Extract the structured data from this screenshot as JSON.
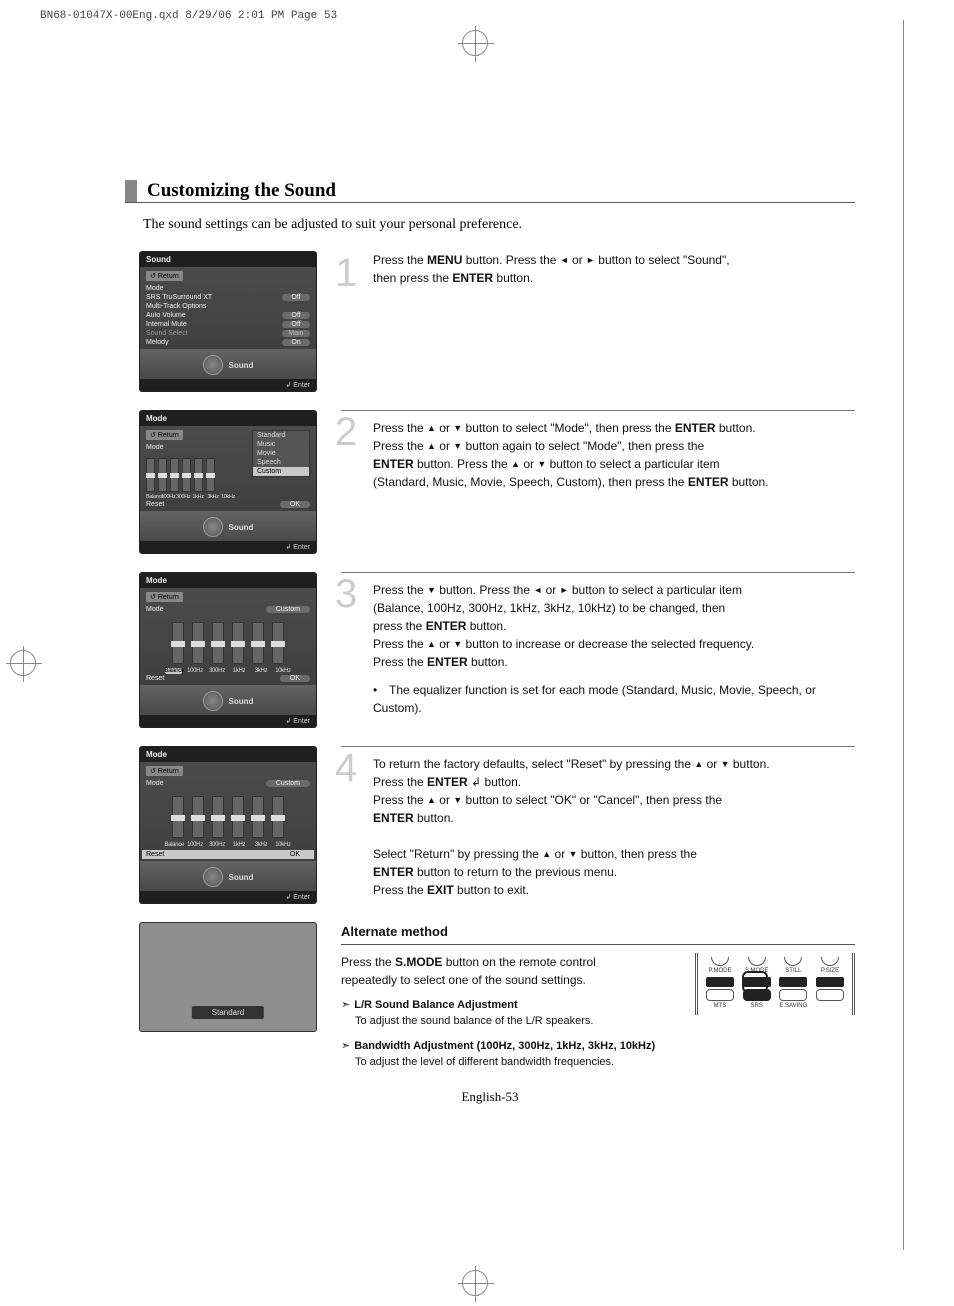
{
  "print_header": "BN68-01047X-00Eng.qxd  8/29/06  2:01 PM  Page 53",
  "title": "Customizing the Sound",
  "intro": "The sound settings can be adjusted to suit your personal preference.",
  "page_number": "English-53",
  "osd1": {
    "title": "Sound",
    "return": "Return",
    "items": [
      {
        "label": "Mode",
        "val": ""
      },
      {
        "label": "SRS TruSurround XT",
        "val": "Off"
      },
      {
        "label": "Multi-Track Options",
        "val": ""
      },
      {
        "label": "Auto Volume",
        "val": "Off"
      },
      {
        "label": "Internal Mute",
        "val": "Off"
      },
      {
        "label": "Sound Select",
        "val": "Main",
        "dim": true
      },
      {
        "label": "Melody",
        "val": "On"
      }
    ],
    "footer": "Sound",
    "enter": "Enter"
  },
  "osd2": {
    "title": "Mode",
    "return": "Return",
    "mode_label": "Mode",
    "options": [
      "Standard",
      "Music",
      "Movie",
      "Speech",
      "Custom"
    ],
    "selected": "Custom",
    "eq_labels": [
      "Balance",
      "100Hz",
      "300Hz",
      "1kHz",
      "3kHz",
      "10kHz"
    ],
    "reset": "Reset",
    "ok": "OK",
    "footer": "Sound",
    "enter": "Enter"
  },
  "osd3": {
    "title": "Mode",
    "return": "Return",
    "mode_label": "Mode",
    "mode_val": "Custom",
    "eq_labels": [
      "Balance",
      "100Hz",
      "300Hz",
      "1kHz",
      "3kHz",
      "10kHz"
    ],
    "selected_band": "Balance",
    "reset": "Reset",
    "ok": "OK",
    "footer": "Sound",
    "enter": "Enter"
  },
  "osd4": {
    "title": "Mode",
    "return": "Return",
    "mode_label": "Mode",
    "mode_val": "Custom",
    "eq_labels": [
      "Balance",
      "100Hz",
      "300Hz",
      "1kHz",
      "3kHz",
      "10kHz"
    ],
    "reset": "Reset",
    "ok": "OK",
    "footer": "Sound",
    "enter": "Enter"
  },
  "standard_popup": "Standard",
  "steps": {
    "s1": {
      "num": "1",
      "l1a": "Press the ",
      "l1b": "MENU",
      "l1c": " button. Press the ",
      "l1d": " or ",
      "l1e": " button to select \"Sound\",",
      "l2a": "then press the ",
      "l2b": "ENTER",
      "l2c": " button."
    },
    "s2": {
      "num": "2",
      "l1a": "Press the ",
      "l1b": " or ",
      "l1c": " button to select \"Mode\", then press the ",
      "l1d": "ENTER",
      "l1e": " button.",
      "l2a": "Press the ",
      "l2b": " or ",
      "l2c": " button again to select \"Mode\", then press the",
      "l3a": "ENTER",
      "l3b": " button. Press the ",
      "l3c": " or ",
      "l3d": " button to select a particular item",
      "l4a": "(Standard, Music, Movie, Speech, Custom), then press the ",
      "l4b": "ENTER",
      "l4c": " button."
    },
    "s3": {
      "num": "3",
      "l1a": "Press the ",
      "l1b": " button. Press the ",
      "l1c": " or ",
      "l1d": " button to select a particular item",
      "l2": "(Balance, 100Hz, 300Hz, 1kHz, 3kHz, 10kHz) to be changed, then",
      "l3a": "press the ",
      "l3b": "ENTER",
      "l3c": " button.",
      "l4a": "Press the ",
      "l4b": " or ",
      "l4c": " button to increase or decrease the selected frequency.",
      "l5a": "Press the ",
      "l5b": "ENTER",
      "l5c": " button.",
      "note": "The equalizer function is set for each mode (Standard, Music, Movie, Speech, or Custom)."
    },
    "s4": {
      "num": "4",
      "l1a": "To return the factory defaults, select \"Reset\" by pressing the ",
      "l1b": " or ",
      "l1c": " button.",
      "l2a": "Press the ",
      "l2b": "ENTER",
      "l2c": " button.",
      "l3a": "Press the ",
      "l3b": " or ",
      "l3c": " button to select \"OK\" or \"Cancel\", then press the",
      "l4a": "ENTER",
      "l4b": " button.",
      "l5a": "Select \"Return\" by pressing the ",
      "l5b": " or ",
      "l5c": " button, then press the",
      "l6a": "ENTER",
      "l6b": " button to return to the previous menu.",
      "l7a": "Press the ",
      "l7b": "EXIT",
      "l7c": " button to exit."
    }
  },
  "alt": {
    "title": "Alternate method",
    "p1a": "Press the ",
    "p1b": "S.MODE",
    "p1c": " button on the remote control",
    "p2": "repeatedly to select one of the sound settings.",
    "sub1_t": "L/R Sound Balance Adjustment",
    "sub1_d": "To adjust the sound balance of the L/R speakers.",
    "sub2_t": "Bandwidth Adjustment (100Hz, 300Hz, 1kHz, 3kHz, 10kHz)",
    "sub2_d": "To adjust the level of different bandwidth frequencies."
  },
  "remote": {
    "top": [
      "P.MODE",
      "S.MODE",
      "STILL",
      "P.SIZE"
    ],
    "bot": [
      "MTS",
      "SRS",
      "E.SAVING",
      ""
    ]
  },
  "arrows": {
    "left": "◄",
    "right": "►",
    "up": "▲",
    "down": "▼",
    "enter_icon": "↲"
  }
}
